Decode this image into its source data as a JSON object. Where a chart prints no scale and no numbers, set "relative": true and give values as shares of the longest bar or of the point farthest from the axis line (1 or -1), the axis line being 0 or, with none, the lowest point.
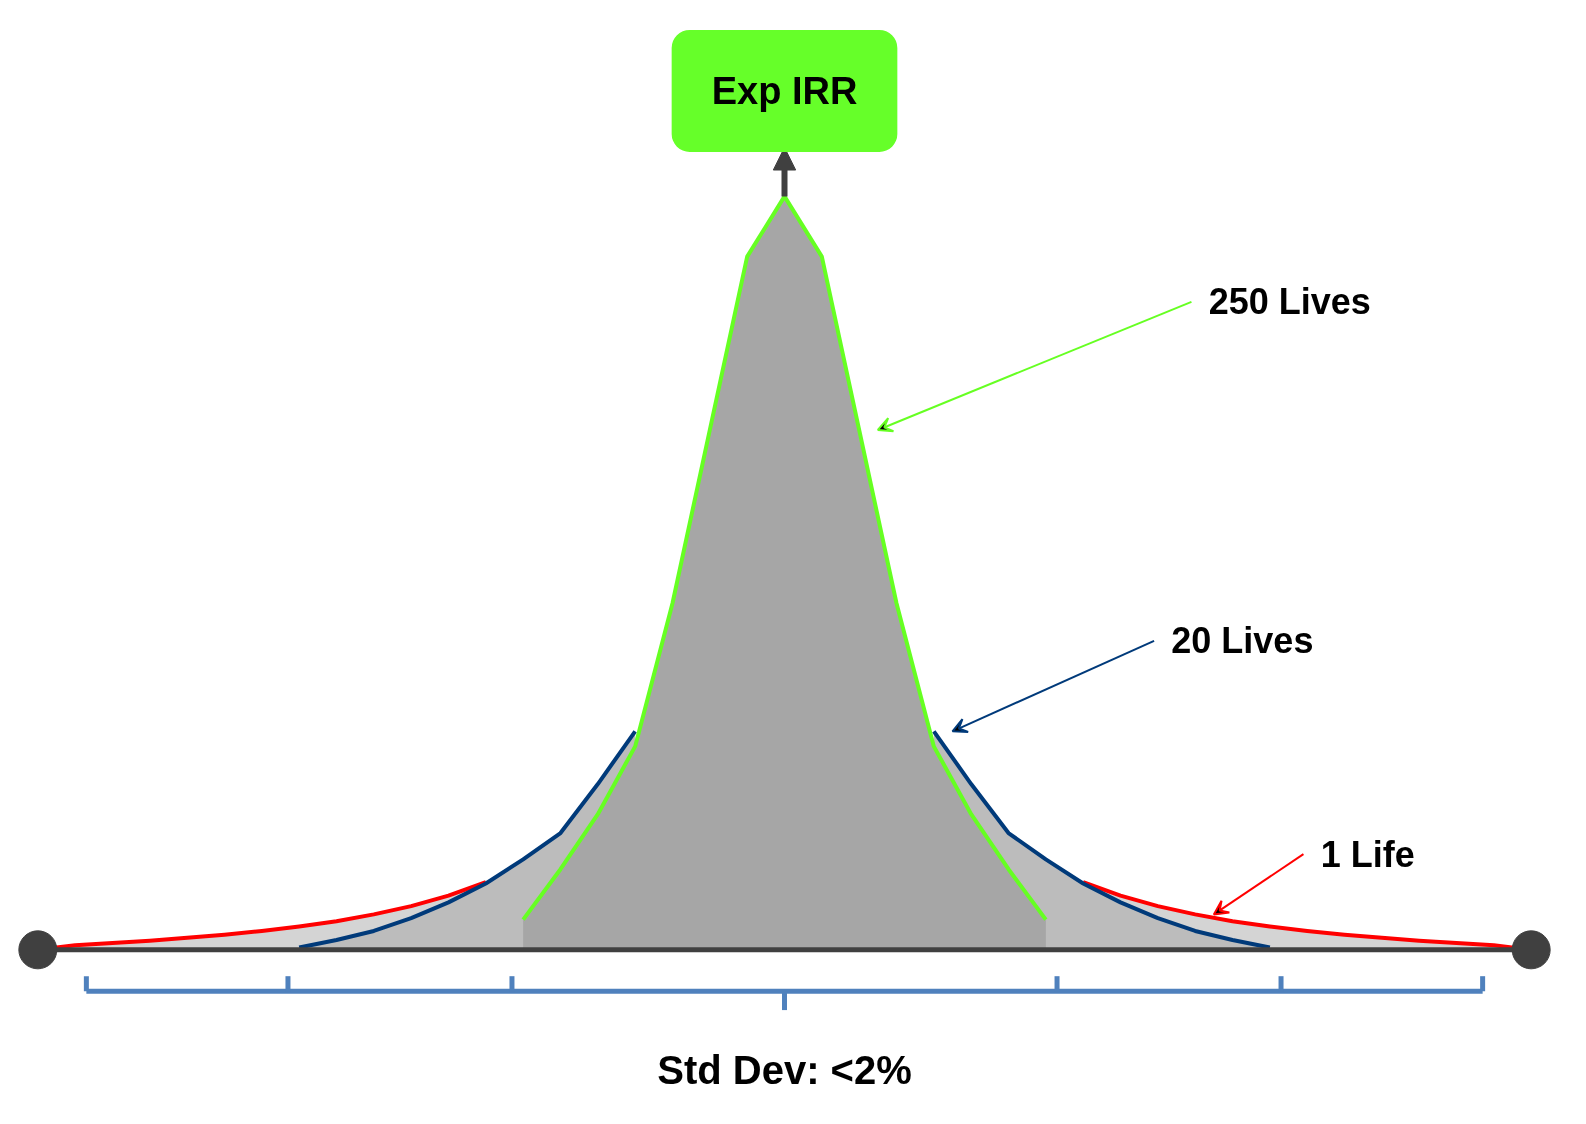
{
  "chart_data": {
    "type": "area",
    "relative": true,
    "categories": [
      null,
      null,
      null,
      null,
      null,
      null,
      null,
      null,
      null,
      null,
      null,
      null,
      null,
      null,
      null,
      null,
      null,
      null,
      null,
      null,
      null,
      null,
      null,
      null,
      null,
      null,
      null,
      null,
      null,
      null,
      null,
      null,
      null,
      null,
      null,
      null,
      null,
      null,
      null,
      null,
      null
    ],
    "series": [
      {
        "name": "1 Life",
        "color": "#ff0000",
        "values": [
          0,
          0.006,
          0.009,
          0.012,
          0.016,
          0.02,
          0.025,
          0.031,
          0.038,
          0.047,
          0.058,
          0.072,
          0.09,
          null,
          null,
          null,
          null,
          null,
          null,
          null,
          null,
          null,
          null,
          null,
          null,
          null,
          null,
          null,
          0.09,
          0.072,
          0.058,
          0.047,
          0.038,
          0.031,
          0.025,
          0.02,
          0.016,
          0.012,
          0.009,
          0.006,
          0
        ]
      },
      {
        "name": "20 Lives",
        "color": "#003a7a",
        "values": [
          null,
          null,
          null,
          null,
          null,
          null,
          null,
          0.003,
          0.013,
          0.025,
          0.042,
          0.063,
          0.088,
          0.12,
          0.155,
          0.22,
          0.29,
          null,
          null,
          null,
          null,
          null,
          null,
          null,
          0.29,
          0.22,
          0.155,
          0.12,
          0.088,
          0.063,
          0.042,
          0.025,
          0.013,
          0.003,
          null,
          null,
          null,
          null,
          null,
          null,
          null
        ]
      },
      {
        "name": "250 Lives",
        "color": "#66ff22",
        "values": [
          null,
          null,
          null,
          null,
          null,
          null,
          null,
          null,
          null,
          null,
          null,
          null,
          null,
          0.04,
          0.107,
          0.18,
          0.27,
          0.46,
          0.69,
          0.92,
          1.0,
          0.92,
          0.69,
          0.46,
          0.27,
          0.18,
          0.107,
          0.04,
          null,
          null,
          null,
          null,
          null,
          null,
          null,
          null,
          null,
          null,
          null,
          null,
          null
        ]
      }
    ],
    "annotations": [
      "Exp IRR",
      "Std Dev: <2%"
    ]
  }
}
